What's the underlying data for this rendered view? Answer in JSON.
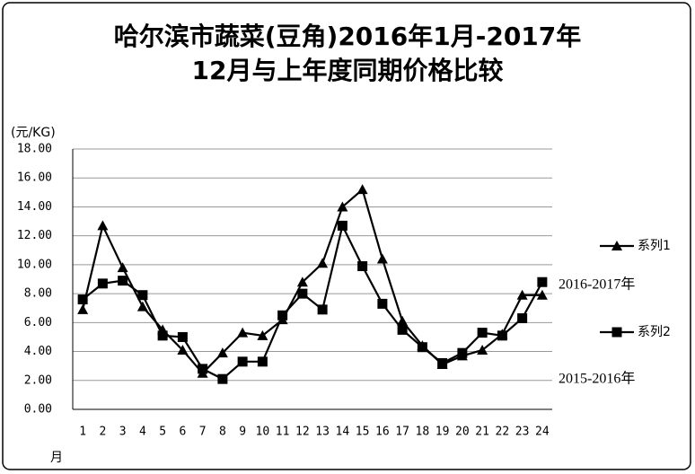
{
  "chart_data": {
    "type": "line",
    "title": [
      "哈尔滨市蔬菜(豆角)2016年1月-2017年",
      "12月与上年度同期价格比较"
    ],
    "y_axis_label": "(元/KG)",
    "x_axis_label": "月",
    "annotations": [
      "2016-2017年",
      "2015-2016年"
    ],
    "categories": [
      "1",
      "2",
      "3",
      "4",
      "5",
      "6",
      "7",
      "8",
      "9",
      "10",
      "11",
      "12",
      "13",
      "14",
      "15",
      "16",
      "17",
      "18",
      "19",
      "20",
      "21",
      "22",
      "23",
      "24"
    ],
    "series": [
      {
        "name": "系列1",
        "color": "#000000",
        "marker": "triangle",
        "values": [
          6.9,
          12.7,
          9.8,
          7.1,
          5.5,
          4.1,
          2.5,
          3.9,
          5.3,
          5.1,
          6.2,
          8.8,
          10.1,
          14.0,
          15.2,
          10.4,
          6.1,
          4.4,
          3.1,
          3.7,
          4.1,
          5.2,
          7.9,
          7.9
        ]
      },
      {
        "name": "系列2",
        "color": "#000000",
        "marker": "square",
        "values": [
          7.6,
          8.7,
          8.9,
          7.9,
          5.1,
          5.0,
          2.8,
          2.1,
          3.3,
          3.3,
          6.5,
          8.0,
          6.9,
          12.7,
          9.9,
          7.3,
          5.5,
          4.3,
          3.2,
          3.9,
          5.3,
          5.1,
          6.3,
          8.8
        ]
      }
    ],
    "ylim": [
      0,
      18
    ],
    "yticks": [
      {
        "value": 0,
        "label": "0.00"
      },
      {
        "value": 2,
        "label": "2.00"
      },
      {
        "value": 4,
        "label": "4.00"
      },
      {
        "value": 6,
        "label": "6.00"
      },
      {
        "value": 8,
        "label": "8.00"
      },
      {
        "value": 10,
        "label": "10.00"
      },
      {
        "value": 12,
        "label": "12.00"
      },
      {
        "value": 14,
        "label": "14.00"
      },
      {
        "value": 16,
        "label": "16.00"
      },
      {
        "value": 18,
        "label": "18.00"
      }
    ],
    "grid": true,
    "legend": "right"
  }
}
